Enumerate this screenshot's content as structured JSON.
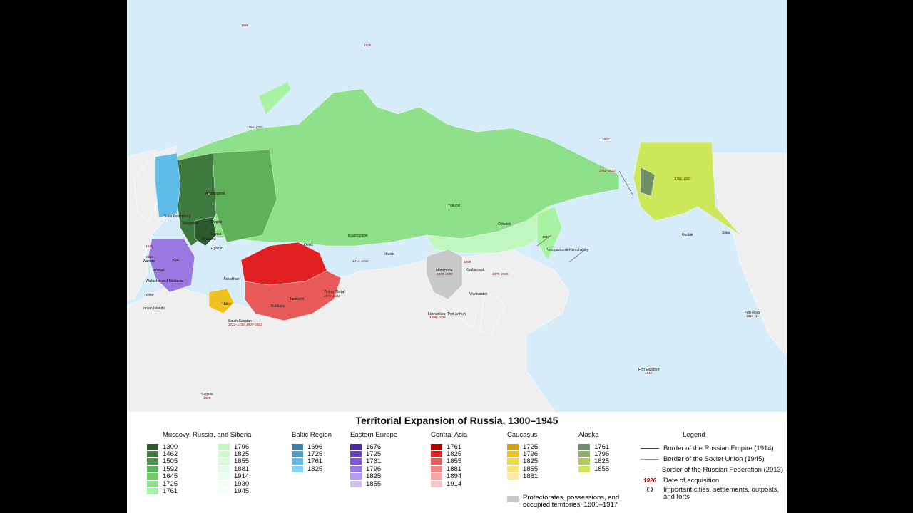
{
  "title": "Territorial Expansion of Russia, 1300–1945",
  "groups": {
    "muscovy": {
      "heading": "Muscovy, Russia, and Siberia",
      "col1": [
        {
          "year": "1300",
          "color": "#2d5a2d"
        },
        {
          "year": "1462",
          "color": "#3f7a3f"
        },
        {
          "year": "1505",
          "color": "#4e954a"
        },
        {
          "year": "1592",
          "color": "#5fb05a"
        },
        {
          "year": "1645",
          "color": "#73cc6b"
        },
        {
          "year": "1725",
          "color": "#8fe08a"
        },
        {
          "year": "1761",
          "color": "#a8f2a4"
        }
      ],
      "col2": [
        {
          "year": "1796",
          "color": "#bff7be"
        },
        {
          "year": "1825",
          "color": "#cdfacd"
        },
        {
          "year": "1855",
          "color": "#d9fbd9"
        },
        {
          "year": "1881",
          "color": "#e3fce3"
        },
        {
          "year": "1914",
          "color": "#ebfdeb"
        },
        {
          "year": "1930",
          "color": "#f1fef1"
        },
        {
          "year": "1945",
          "color": "#f6fff6"
        }
      ]
    },
    "baltic": {
      "heading": "Baltic Region",
      "items": [
        {
          "year": "1696",
          "color": "#3d7fa6"
        },
        {
          "year": "1725",
          "color": "#4a9fce"
        },
        {
          "year": "1761",
          "color": "#5fbbe8"
        },
        {
          "year": "1825",
          "color": "#82d2fb"
        }
      ]
    },
    "eastern_europe": {
      "heading": "Eastern Europe",
      "items": [
        {
          "year": "1676",
          "color": "#4a2a9e"
        },
        {
          "year": "1725",
          "color": "#6a3fc4"
        },
        {
          "year": "1761",
          "color": "#8055d6"
        },
        {
          "year": "1796",
          "color": "#9b78e0"
        },
        {
          "year": "1825",
          "color": "#b59ce8"
        },
        {
          "year": "1855",
          "color": "#d0c0f0"
        }
      ]
    },
    "central_asia": {
      "heading": "Central Asia",
      "items": [
        {
          "year": "1761",
          "color": "#b80000"
        },
        {
          "year": "1825",
          "color": "#e02020"
        },
        {
          "year": "1855",
          "color": "#e85a5a"
        },
        {
          "year": "1881",
          "color": "#ee8686"
        },
        {
          "year": "1894",
          "color": "#f2a6a6"
        },
        {
          "year": "1914",
          "color": "#f7c6c6"
        }
      ]
    },
    "caucasus": {
      "heading": "Caucasus",
      "items": [
        {
          "year": "1725",
          "color": "#d0a018"
        },
        {
          "year": "1796",
          "color": "#f0c020"
        },
        {
          "year": "1825",
          "color": "#f5d548"
        },
        {
          "year": "1855",
          "color": "#f8e27a"
        },
        {
          "year": "1881",
          "color": "#faebaa"
        }
      ]
    },
    "alaska": {
      "heading": "Alaska",
      "items": [
        {
          "year": "1761",
          "color": "#6f8f6a"
        },
        {
          "year": "1796",
          "color": "#8fae6a"
        },
        {
          "year": "1825",
          "color": "#b0cc5a"
        },
        {
          "year": "1855",
          "color": "#cce85a"
        }
      ]
    }
  },
  "protectorates": {
    "label": "Protectorates, possessions, and occupied territories, 1800–1917",
    "color": "#c8c8c8"
  },
  "legend": {
    "heading": "Legend",
    "items": [
      {
        "label": "Border of the Russian Empire (1914)",
        "color": "#444444"
      },
      {
        "label": "Border of the Soviet Union (1945)",
        "color": "#999999"
      },
      {
        "label": "Border of the Russian Federation (2013)",
        "color": "#e8a0a0"
      },
      {
        "symbol": "1926",
        "label": "Date of acquisition",
        "color": "#8b0000"
      },
      {
        "label": "Important cities, settlements, outposts, and forts"
      }
    ]
  },
  "map": {
    "colors": {
      "sea": "#d6ecf8",
      "foreign_land": "#efefef",
      "border": "#ffffff"
    },
    "cities": [
      {
        "name": "Arkhangelsk"
      },
      {
        "name": "Saint Petersburg"
      },
      {
        "name": "Novgorod"
      },
      {
        "name": "Vologda"
      },
      {
        "name": "Suzdal"
      },
      {
        "name": "Moscow"
      },
      {
        "name": "Ryazan"
      },
      {
        "name": "Kyiv"
      },
      {
        "name": "Astrakhan"
      },
      {
        "name": "Tbilisi"
      },
      {
        "name": "Omsk"
      },
      {
        "name": "Krasnoyarsk"
      },
      {
        "name": "Irkutsk"
      },
      {
        "name": "Yakutsk"
      },
      {
        "name": "Okhotsk"
      },
      {
        "name": "Petropavlovsk-Kamchatsky"
      },
      {
        "name": "Khabarovsk"
      },
      {
        "name": "Vladivostok"
      },
      {
        "name": "Manchuria"
      },
      {
        "name": "Lüshunkou (Port Arthur)"
      },
      {
        "name": "Yining (Gulja)"
      },
      {
        "name": "Tashkent"
      },
      {
        "name": "Bukhara"
      },
      {
        "name": "Warsaw"
      },
      {
        "name": "Ternopil"
      },
      {
        "name": "Wallachia and Moldavia"
      },
      {
        "name": "Kotor"
      },
      {
        "name": "Ionian Islands"
      },
      {
        "name": "South Caspian"
      },
      {
        "name": "Kodiak"
      },
      {
        "name": "Sitka"
      },
      {
        "name": "Fort Ross"
      },
      {
        "name": "Fort Elizabeth"
      },
      {
        "name": "Sagallo"
      }
    ],
    "dates": [
      {
        "text": "1926"
      },
      {
        "text": "1925"
      },
      {
        "text": "1765–1782"
      },
      {
        "text": "1867"
      },
      {
        "text": "1761–1822"
      },
      {
        "text": "1761–1867"
      },
      {
        "text": "1697"
      },
      {
        "text": "1914, 1942"
      },
      {
        "text": "1858"
      },
      {
        "text": "1875–1945"
      },
      {
        "text": "1900–1905"
      },
      {
        "text": "1871–1881"
      },
      {
        "text": "1898–1905"
      },
      {
        "text": "1812"
      },
      {
        "text": "1815"
      },
      {
        "text": "1918"
      },
      {
        "text": "1814–41"
      },
      {
        "text": "1889"
      },
      {
        "text": "1723–1732, 1907–1921"
      }
    ]
  }
}
